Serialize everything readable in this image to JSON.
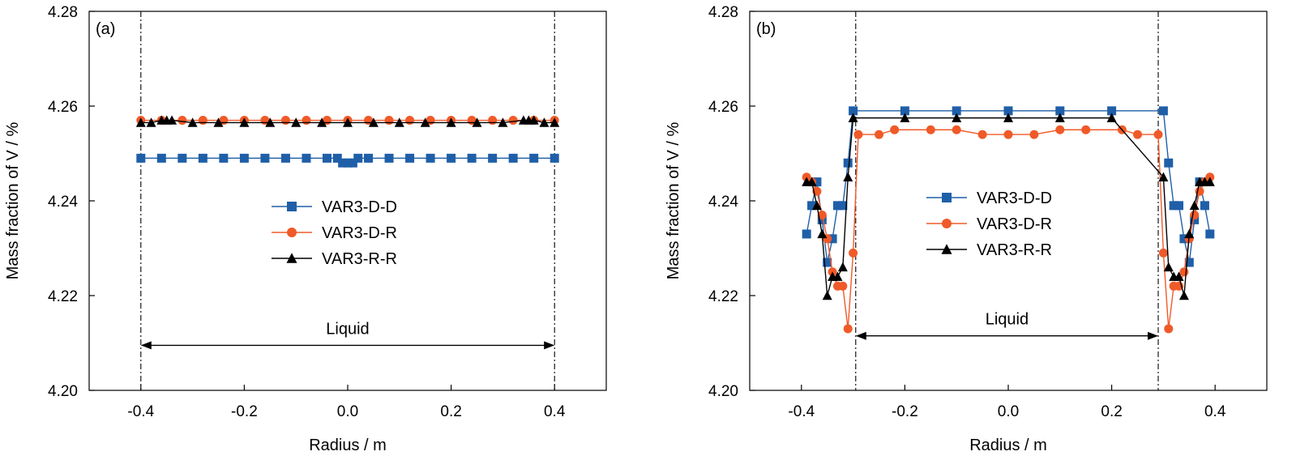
{
  "chart_data": [
    {
      "type": "line",
      "panel_label": "(a)",
      "xlabel": "Radius / m",
      "ylabel": "Mass fraction of V / %",
      "xlim": [
        -0.5,
        0.5
      ],
      "ylim": [
        4.2,
        4.28
      ],
      "xticks": [
        "-0.4",
        "-0.2",
        "0.0",
        "0.2",
        "0.4"
      ],
      "yticks": [
        "4.20",
        "4.22",
        "4.24",
        "4.26",
        "4.28"
      ],
      "grid": false,
      "legend_position": "center",
      "vlines": [
        -0.4,
        0.4
      ],
      "annotation": {
        "text": "Liquid",
        "arrow_from": -0.4,
        "arrow_to": 0.4,
        "arrow_y": 4.2095
      },
      "series": [
        {
          "name": "VAR3-D-D",
          "color": "#1f5fa8",
          "marker": "square",
          "x": [
            -0.4,
            -0.36,
            -0.32,
            -0.28,
            -0.24,
            -0.2,
            -0.16,
            -0.12,
            -0.08,
            -0.04,
            -0.02,
            -0.01,
            0.0,
            0.01,
            0.02,
            0.04,
            0.08,
            0.12,
            0.16,
            0.2,
            0.24,
            0.28,
            0.32,
            0.36,
            0.4
          ],
          "y": [
            4.249,
            4.249,
            4.249,
            4.249,
            4.249,
            4.249,
            4.249,
            4.249,
            4.249,
            4.249,
            4.249,
            4.248,
            4.248,
            4.248,
            4.249,
            4.249,
            4.249,
            4.249,
            4.249,
            4.249,
            4.249,
            4.249,
            4.249,
            4.249,
            4.249
          ]
        },
        {
          "name": "VAR3-D-R",
          "color": "#f05a28",
          "marker": "circle",
          "x": [
            -0.4,
            -0.36,
            -0.32,
            -0.28,
            -0.24,
            -0.2,
            -0.16,
            -0.12,
            -0.08,
            -0.04,
            0.0,
            0.04,
            0.08,
            0.12,
            0.16,
            0.2,
            0.24,
            0.28,
            0.32,
            0.36,
            0.4
          ],
          "y": [
            4.257,
            4.257,
            4.257,
            4.257,
            4.257,
            4.257,
            4.257,
            4.257,
            4.257,
            4.257,
            4.257,
            4.257,
            4.257,
            4.257,
            4.257,
            4.257,
            4.257,
            4.257,
            4.257,
            4.257,
            4.257
          ]
        },
        {
          "name": "VAR3-R-R",
          "color": "#000000",
          "marker": "triangle",
          "x": [
            -0.4,
            -0.38,
            -0.36,
            -0.35,
            -0.34,
            -0.3,
            -0.25,
            -0.2,
            -0.15,
            -0.1,
            -0.05,
            0.0,
            0.05,
            0.1,
            0.15,
            0.2,
            0.25,
            0.3,
            0.34,
            0.35,
            0.36,
            0.38,
            0.4
          ],
          "y": [
            4.2565,
            4.2565,
            4.257,
            4.257,
            4.257,
            4.2565,
            4.2565,
            4.2565,
            4.2565,
            4.2565,
            4.2565,
            4.2565,
            4.2565,
            4.2565,
            4.2565,
            4.2565,
            4.2565,
            4.2565,
            4.257,
            4.257,
            4.257,
            4.2565,
            4.2565
          ]
        }
      ]
    },
    {
      "type": "line",
      "panel_label": "(b)",
      "xlabel": "Radius / m",
      "ylabel": "Mass fraction of V / %",
      "xlim": [
        -0.5,
        0.5
      ],
      "ylim": [
        4.2,
        4.28
      ],
      "xticks": [
        "-0.4",
        "-0.2",
        "0.0",
        "0.2",
        "0.4"
      ],
      "yticks": [
        "4.20",
        "4.22",
        "4.24",
        "4.26",
        "4.28"
      ],
      "grid": false,
      "legend_position": "center",
      "vlines": [
        -0.295,
        0.29
      ],
      "annotation": {
        "text": "Liquid",
        "arrow_from": -0.295,
        "arrow_to": 0.29,
        "arrow_y": 4.2115
      },
      "series": [
        {
          "name": "VAR3-D-D",
          "color": "#1f5fa8",
          "marker": "square",
          "x": [
            -0.39,
            -0.38,
            -0.37,
            -0.36,
            -0.35,
            -0.34,
            -0.33,
            -0.32,
            -0.31,
            -0.3,
            -0.2,
            -0.1,
            0.0,
            0.1,
            0.2,
            0.3,
            0.31,
            0.32,
            0.33,
            0.34,
            0.35,
            0.36,
            0.37,
            0.38,
            0.39
          ],
          "y": [
            4.233,
            4.239,
            4.244,
            4.236,
            4.227,
            4.232,
            4.239,
            4.239,
            4.248,
            4.259,
            4.259,
            4.259,
            4.259,
            4.259,
            4.259,
            4.259,
            4.248,
            4.239,
            4.239,
            4.232,
            4.227,
            4.236,
            4.244,
            4.239,
            4.233
          ]
        },
        {
          "name": "VAR3-D-R",
          "color": "#f05a28",
          "marker": "circle",
          "x": [
            -0.39,
            -0.38,
            -0.37,
            -0.36,
            -0.35,
            -0.34,
            -0.33,
            -0.32,
            -0.31,
            -0.3,
            -0.29,
            -0.25,
            -0.22,
            -0.15,
            -0.1,
            -0.05,
            0.0,
            0.05,
            0.1,
            0.15,
            0.22,
            0.25,
            0.29,
            0.3,
            0.31,
            0.32,
            0.33,
            0.34,
            0.35,
            0.36,
            0.37,
            0.38,
            0.39
          ],
          "y": [
            4.245,
            4.244,
            4.242,
            4.237,
            4.232,
            4.225,
            4.222,
            4.222,
            4.213,
            4.229,
            4.254,
            4.254,
            4.255,
            4.255,
            4.255,
            4.254,
            4.254,
            4.254,
            4.255,
            4.255,
            4.255,
            4.254,
            4.254,
            4.229,
            4.213,
            4.222,
            4.222,
            4.225,
            4.232,
            4.237,
            4.242,
            4.244,
            4.245
          ]
        },
        {
          "name": "VAR3-R-R",
          "color": "#000000",
          "marker": "triangle",
          "x": [
            -0.39,
            -0.38,
            -0.37,
            -0.36,
            -0.35,
            -0.34,
            -0.33,
            -0.32,
            -0.31,
            -0.3,
            -0.2,
            -0.1,
            0.0,
            0.1,
            0.2,
            0.3,
            0.31,
            0.32,
            0.33,
            0.34,
            0.35,
            0.36,
            0.37,
            0.38,
            0.39
          ],
          "y": [
            4.244,
            4.244,
            4.239,
            4.233,
            4.22,
            4.224,
            4.224,
            4.226,
            4.245,
            4.2575,
            4.2575,
            4.2575,
            4.2575,
            4.2575,
            4.2575,
            4.245,
            4.226,
            4.224,
            4.224,
            4.22,
            4.233,
            4.239,
            4.244,
            4.244,
            4.244
          ]
        }
      ]
    }
  ]
}
